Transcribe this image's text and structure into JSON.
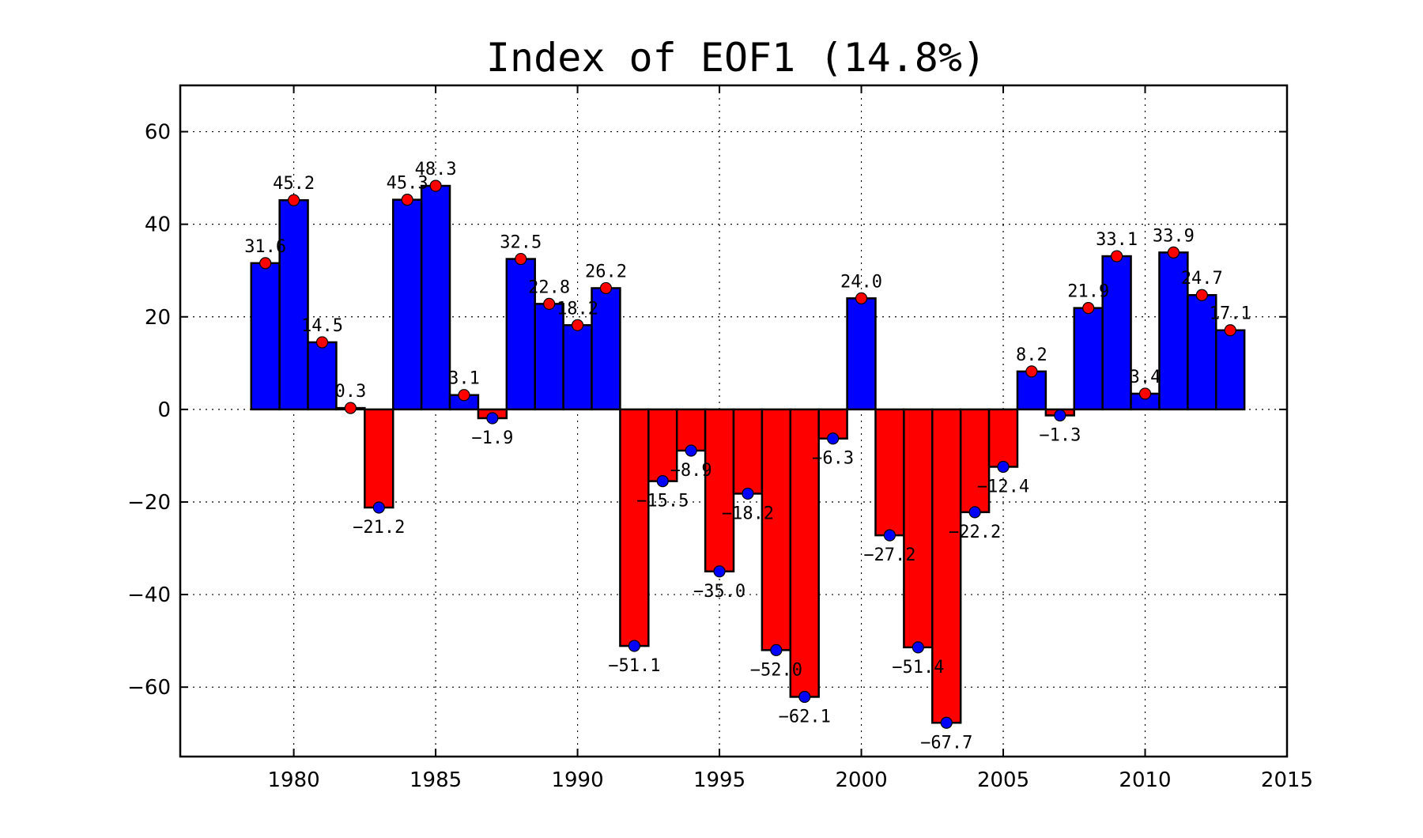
{
  "chart_data": {
    "type": "bar",
    "title": "Index of EOF1 (14.8%)",
    "xlabel": "",
    "ylabel": "",
    "xlim": [
      1976,
      2015
    ],
    "ylim": [
      -75,
      70
    ],
    "grid": true,
    "x_ticks": [
      "1980",
      "1985",
      "1990",
      "1995",
      "2000",
      "2005",
      "2010",
      "2015"
    ],
    "y_ticks": [
      "60",
      "40",
      "20",
      "0",
      "−20",
      "−40",
      "−60"
    ],
    "x_tick_values": [
      1980,
      1985,
      1990,
      1995,
      2000,
      2005,
      2010,
      2015
    ],
    "y_tick_values": [
      60,
      40,
      20,
      0,
      -20,
      -40,
      -60
    ],
    "years": [
      1979,
      1980,
      1981,
      1982,
      1983,
      1984,
      1985,
      1986,
      1987,
      1988,
      1989,
      1990,
      1991,
      1992,
      1993,
      1994,
      1995,
      1996,
      1997,
      1998,
      1999,
      2000,
      2001,
      2002,
      2003,
      2004,
      2005,
      2006,
      2007,
      2008,
      2009,
      2010,
      2011,
      2012,
      2013
    ],
    "values": [
      31.6,
      45.2,
      14.5,
      0.3,
      -21.2,
      45.3,
      48.3,
      3.1,
      -1.9,
      32.5,
      22.8,
      18.2,
      26.2,
      -51.1,
      -15.5,
      -8.9,
      -35.0,
      -18.2,
      -52.0,
      -62.1,
      -6.3,
      24.0,
      -27.2,
      -51.4,
      -67.7,
      -22.2,
      -12.4,
      8.2,
      -1.3,
      21.9,
      33.1,
      3.4,
      33.9,
      24.7,
      17.1
    ],
    "labels": [
      "31.6",
      "45.2",
      "14.5",
      "0.3",
      "−21.2",
      "45.3",
      "48.3",
      "3.1",
      "−1.9",
      "32.5",
      "22.8",
      "18.2",
      "26.2",
      "−51.1",
      "−15.5",
      "−8.9",
      "−35.0",
      "−18.2",
      "−52.0",
      "−62.1",
      "−6.3",
      "24.0",
      "−27.2",
      "−51.4",
      "−67.7",
      "−22.2",
      "−12.4",
      "8.2",
      "−1.3",
      "21.9",
      "33.1",
      "3.4",
      "33.9",
      "24.7",
      "17.1"
    ],
    "colors": {
      "positive_bar": "#0000ff",
      "negative_bar": "#ff0000",
      "positive_marker": "#ff0000",
      "negative_marker": "#0000ff"
    }
  }
}
